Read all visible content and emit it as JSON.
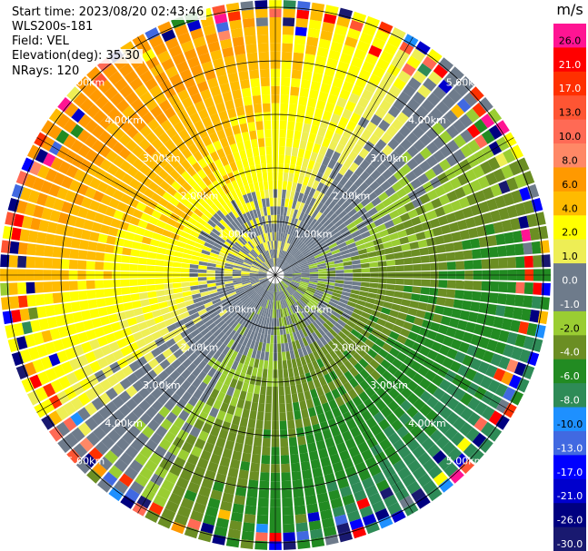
{
  "header": {
    "start_time": "Start time: 2023/08/20 02:43:46",
    "instrument": "WLS200s-181",
    "field": "Field: VEL",
    "elevation": "Elevation(deg): 35.30",
    "nrays": "NRays: 120"
  },
  "range_rings": {
    "labels": [
      "1.00km",
      "2.00km",
      "3.00km",
      "4.00km",
      "5.00km"
    ]
  },
  "colorbar": {
    "unit": "m/s",
    "ticks": [
      "26.0",
      "21.0",
      "17.0",
      "13.0",
      "10.0",
      "8.0",
      "6.0",
      "4.0",
      "2.0",
      "1.0",
      "0.0",
      "-1.0",
      "-2.0",
      "-4.0",
      "-6.0",
      "-8.0",
      "-10.0",
      "-13.0",
      "-17.0",
      "-21.0",
      "-26.0",
      "-30.0"
    ],
    "colors": [
      "#ff1493",
      "#ff0000",
      "#ff3000",
      "#ff5533",
      "#ff6a55",
      "#ff8866",
      "#ff9900",
      "#ffbb00",
      "#ffff00",
      "#eeee55",
      "#6e7b8b",
      "#6e7b8b",
      "#9acd32",
      "#6b8e23",
      "#228b22",
      "#2e8b57",
      "#1e90ff",
      "#4169e1",
      "#0000ff",
      "#0000cd",
      "#000080",
      "#191970"
    ]
  }
}
